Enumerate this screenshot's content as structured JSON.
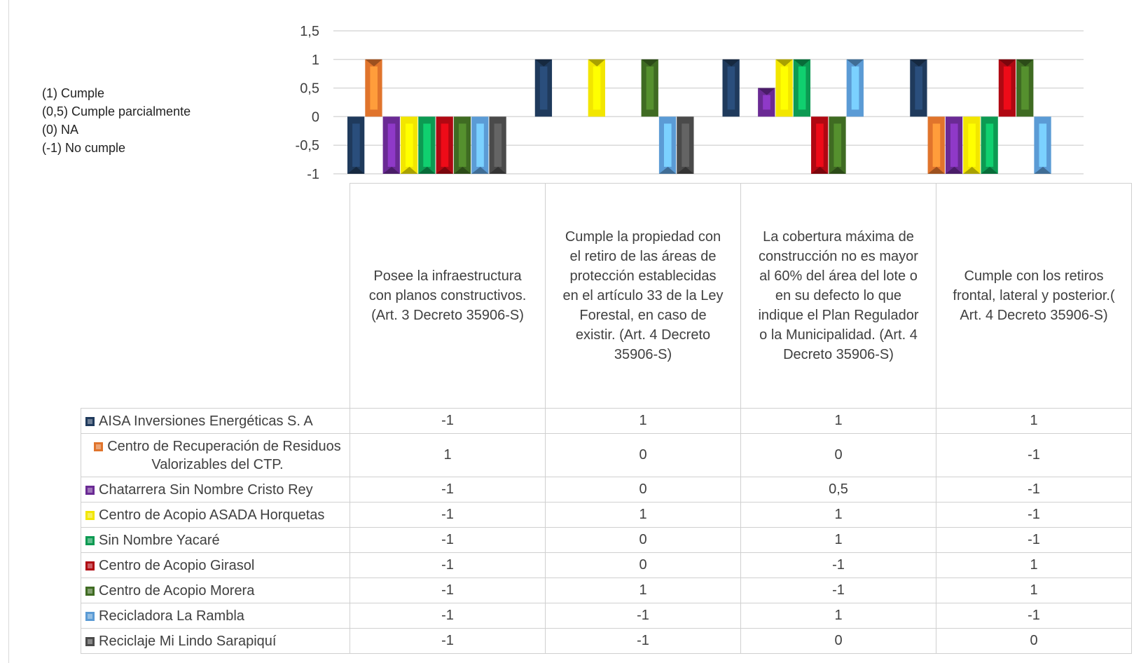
{
  "chart_data": {
    "type": "bar",
    "ylim": [
      -1,
      1.5
    ],
    "yticks": [
      -1,
      -0.5,
      0,
      0.5,
      1,
      1.5
    ],
    "ytick_labels": [
      "-1",
      "-0,5",
      "0",
      "0,5",
      "1",
      "1,5"
    ],
    "grid": true,
    "legend": "table",
    "notes": [
      "(1) Cumple",
      "(0,5) Cumple parcialmente",
      "(0) NA",
      "(-1) No cumple"
    ],
    "categories": [
      "Posee la infraestructura con planos constructivos. (Art. 3 Decreto 35906-S)",
      "Cumple la propiedad con el retiro de las áreas de protección establecidas en el artículo 33 de la Ley Forestal, en caso de existir. (Art. 4 Decreto 35906-S)",
      "La cobertura máxima de construcción no es mayor al 60% del área del lote o en su defecto lo que indique el Plan Regulador o la Municipalidad. (Art. 4 Decreto 35906-S)",
      "Cumple con los retiros frontal, lateral y posterior.( Art. 4 Decreto 35906-S)"
    ],
    "series": [
      {
        "name": "AISA Inversiones Energéticas S. A",
        "color": "#1f3a5c",
        "values": [
          -1,
          1,
          1,
          1
        ],
        "labels": [
          "-1",
          "1",
          "1",
          "1"
        ]
      },
      {
        "name": "Centro de Recuperación de Residuos Valorizables del CTP.",
        "color": "#e0742c",
        "values": [
          1,
          0,
          0,
          -1
        ],
        "labels": [
          "1",
          "0",
          "0",
          "-1"
        ]
      },
      {
        "name": "Chatarrera Sin Nombre Cristo Rey",
        "color": "#6a2a94",
        "values": [
          -1,
          0,
          0.5,
          -1
        ],
        "labels": [
          "-1",
          "0",
          "0,5",
          "-1"
        ]
      },
      {
        "name": "Centro de Acopio ASADA Horquetas",
        "color": "#f2e600",
        "values": [
          -1,
          1,
          1,
          -1
        ],
        "labels": [
          "-1",
          "1",
          "1",
          "-1"
        ]
      },
      {
        "name": "Sin Nombre Yacaré",
        "color": "#0c9a52",
        "values": [
          -1,
          0,
          1,
          -1
        ],
        "labels": [
          "-1",
          "0",
          "1",
          "-1"
        ]
      },
      {
        "name": "Centro de Acopio Girasol",
        "color": "#b00812",
        "values": [
          -1,
          0,
          -1,
          1
        ],
        "labels": [
          "-1",
          "0",
          "-1",
          "1"
        ]
      },
      {
        "name": "Centro de Acopio Morera",
        "color": "#3f6b22",
        "values": [
          -1,
          1,
          -1,
          1
        ],
        "labels": [
          "-1",
          "1",
          "-1",
          "1"
        ]
      },
      {
        "name": "Recicladora La Rambla",
        "color": "#5b9bd5",
        "values": [
          -1,
          -1,
          1,
          -1
        ],
        "labels": [
          "-1",
          "-1",
          "1",
          "-1"
        ]
      },
      {
        "name": "Reciclaje Mi Lindo Sarapiquí",
        "color": "#4a4a4a",
        "values": [
          -1,
          -1,
          0,
          0
        ],
        "labels": [
          "-1",
          "-1",
          "0",
          "0"
        ]
      }
    ]
  }
}
